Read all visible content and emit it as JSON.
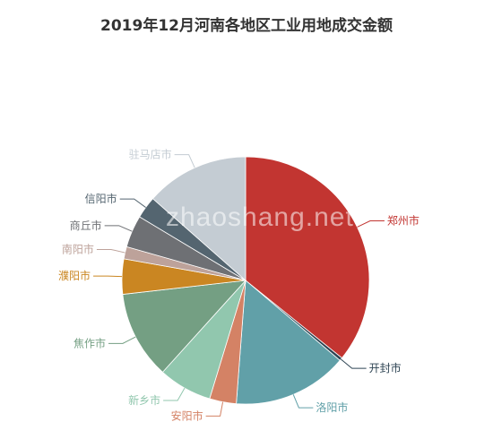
{
  "chart_data": {
    "type": "pie",
    "title": "2019年12月河南各地区工业用地成交金额",
    "watermark": "zhaoshang.net",
    "slices": [
      {
        "label": "郑州市",
        "value": 35.8,
        "color": "#c23531"
      },
      {
        "label": "开封市",
        "value": 0.4,
        "color": "#2f4554"
      },
      {
        "label": "洛阳市",
        "value": 15.0,
        "color": "#61a0a8"
      },
      {
        "label": "安阳市",
        "value": 3.5,
        "color": "#d48265"
      },
      {
        "label": "新乡市",
        "value": 7.0,
        "color": "#91c7ae"
      },
      {
        "label": "焦作市",
        "value": 11.5,
        "color": "#749f83"
      },
      {
        "label": "濮阳市",
        "value": 4.6,
        "color": "#ca8622"
      },
      {
        "label": "南阳市",
        "value": 1.6,
        "color": "#bda29a"
      },
      {
        "label": "商丘市",
        "value": 4.2,
        "color": "#6e7074"
      },
      {
        "label": "信阳市",
        "value": 2.9,
        "color": "#546570"
      },
      {
        "label": "驻马店市",
        "value": 13.5,
        "color": "#c4ccd3"
      }
    ]
  }
}
